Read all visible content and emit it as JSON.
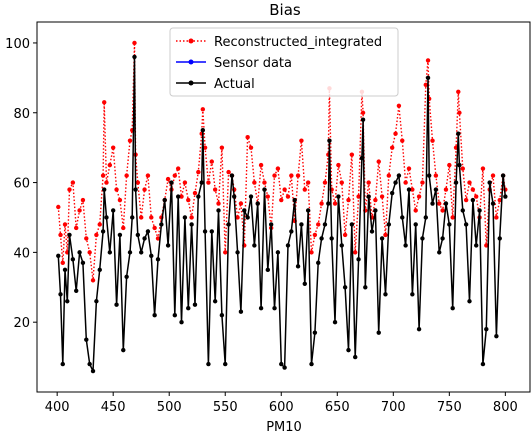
{
  "chart_data": {
    "type": "line",
    "title": "Bias",
    "xlabel": "PM10",
    "ylabel": "",
    "xlim": [
      382,
      822
    ],
    "ylim": [
      0,
      106
    ],
    "xticks": [
      400,
      450,
      500,
      550,
      600,
      650,
      700,
      750,
      800
    ],
    "yticks": [
      20,
      40,
      60,
      80,
      100
    ],
    "grid": false,
    "legend_position": "top-center",
    "series": [
      {
        "name": "Reconstructed_integrated",
        "color": "#ff0000",
        "style": "dotted",
        "marker": "dot",
        "x": [
          401,
          403,
          405,
          407,
          409,
          411,
          414,
          417,
          420,
          423,
          426,
          429,
          432,
          435,
          438,
          441,
          442,
          444,
          447,
          450,
          453,
          456,
          459,
          462,
          465,
          467,
          469,
          470,
          472,
          475,
          478,
          481,
          484,
          487,
          490,
          493,
          496,
          499,
          502,
          505,
          508,
          511,
          514,
          517,
          520,
          523,
          526,
          529,
          530,
          532,
          535,
          538,
          541,
          544,
          547,
          550,
          553,
          556,
          558,
          561,
          564,
          567,
          570,
          573,
          576,
          579,
          582,
          585,
          588,
          591,
          594,
          597,
          600,
          603,
          606,
          609,
          612,
          615,
          618,
          621,
          624,
          627,
          630,
          633,
          636,
          639,
          642,
          643,
          645,
          648,
          651,
          654,
          657,
          660,
          663,
          666,
          669,
          672,
          673,
          675,
          678,
          681,
          684,
          687,
          690,
          693,
          696,
          699,
          702,
          705,
          708,
          711,
          714,
          717,
          720,
          723,
          726,
          729,
          731,
          732,
          735,
          738,
          741,
          744,
          747,
          750,
          753,
          756,
          758,
          759,
          762,
          765,
          768,
          771,
          774,
          777,
          780,
          783,
          786,
          789,
          792,
          795,
          798,
          800
        ],
        "y": [
          53,
          45,
          37,
          48,
          40,
          58,
          60,
          47,
          52,
          55,
          44,
          40,
          32,
          45,
          48,
          62,
          83,
          60,
          65,
          70,
          58,
          55,
          47,
          62,
          72,
          75,
          100,
          68,
          60,
          50,
          58,
          62,
          50,
          47,
          44,
          50,
          55,
          61,
          58,
          62,
          64,
          56,
          60,
          55,
          50,
          57,
          63,
          74,
          81,
          70,
          60,
          66,
          58,
          54,
          70,
          40,
          63,
          62,
          58,
          50,
          54,
          42,
          73,
          70,
          60,
          54,
          65,
          60,
          56,
          47,
          62,
          64,
          55,
          58,
          56,
          62,
          49,
          62,
          72,
          58,
          60,
          40,
          45,
          48,
          54,
          60,
          68,
          87,
          58,
          54,
          65,
          60,
          45,
          55,
          68,
          40,
          56,
          86,
          80,
          52,
          60,
          50,
          55,
          66,
          56,
          45,
          62,
          70,
          74,
          82,
          72,
          60,
          64,
          58,
          52,
          56,
          60,
          88,
          95,
          84,
          72,
          62,
          54,
          52,
          58,
          65,
          50,
          70,
          86,
          80,
          64,
          55,
          60,
          58,
          56,
          50,
          64,
          42,
          58,
          62,
          50,
          55,
          62,
          58
        ]
      },
      {
        "name": "Sensor data",
        "color": "#0000ff",
        "style": "solid",
        "marker": "dot",
        "x": [],
        "y": []
      },
      {
        "name": "Actual",
        "color": "#000000",
        "style": "solid",
        "marker": "dot",
        "x": [
          401,
          403,
          405,
          407,
          409,
          411,
          414,
          417,
          420,
          423,
          426,
          429,
          432,
          435,
          438,
          441,
          442,
          444,
          447,
          450,
          453,
          456,
          459,
          462,
          465,
          467,
          469,
          470,
          472,
          475,
          478,
          481,
          484,
          487,
          490,
          493,
          496,
          499,
          502,
          505,
          508,
          511,
          514,
          517,
          520,
          523,
          526,
          529,
          530,
          532,
          535,
          538,
          541,
          544,
          547,
          550,
          553,
          556,
          558,
          561,
          564,
          567,
          570,
          573,
          576,
          579,
          582,
          585,
          588,
          591,
          594,
          597,
          600,
          603,
          606,
          609,
          612,
          615,
          618,
          621,
          624,
          627,
          630,
          633,
          636,
          639,
          642,
          643,
          645,
          648,
          651,
          654,
          657,
          660,
          663,
          666,
          669,
          672,
          673,
          675,
          678,
          681,
          684,
          687,
          690,
          693,
          696,
          699,
          702,
          705,
          708,
          711,
          714,
          717,
          720,
          723,
          726,
          729,
          731,
          732,
          735,
          738,
          741,
          744,
          747,
          750,
          753,
          756,
          758,
          759,
          762,
          765,
          768,
          771,
          774,
          777,
          780,
          783,
          786,
          789,
          792,
          795,
          798,
          800
        ],
        "y": [
          39,
          28,
          8,
          35,
          26,
          45,
          38,
          29,
          40,
          37,
          15,
          8,
          6,
          26,
          35,
          46,
          58,
          50,
          40,
          52,
          25,
          45,
          12,
          33,
          40,
          50,
          96,
          58,
          45,
          40,
          44,
          46,
          39,
          22,
          38,
          48,
          55,
          42,
          60,
          22,
          56,
          20,
          50,
          24,
          48,
          25,
          56,
          60,
          75,
          46,
          8,
          46,
          26,
          52,
          22,
          8,
          48,
          62,
          56,
          40,
          23,
          52,
          50,
          56,
          42,
          54,
          24,
          58,
          35,
          48,
          24,
          40,
          8,
          7,
          42,
          46,
          55,
          36,
          48,
          31,
          52,
          8,
          17,
          37,
          44,
          48,
          54,
          72,
          44,
          20,
          56,
          42,
          30,
          12,
          48,
          10,
          38,
          67,
          78,
          30,
          56,
          46,
          52,
          17,
          44,
          28,
          48,
          57,
          60,
          62,
          50,
          42,
          58,
          28,
          48,
          18,
          44,
          50,
          90,
          62,
          54,
          58,
          40,
          44,
          54,
          48,
          24,
          60,
          74,
          65,
          52,
          48,
          26,
          55,
          42,
          52,
          8,
          18,
          60,
          54,
          16,
          44,
          62,
          56
        ]
      }
    ]
  }
}
